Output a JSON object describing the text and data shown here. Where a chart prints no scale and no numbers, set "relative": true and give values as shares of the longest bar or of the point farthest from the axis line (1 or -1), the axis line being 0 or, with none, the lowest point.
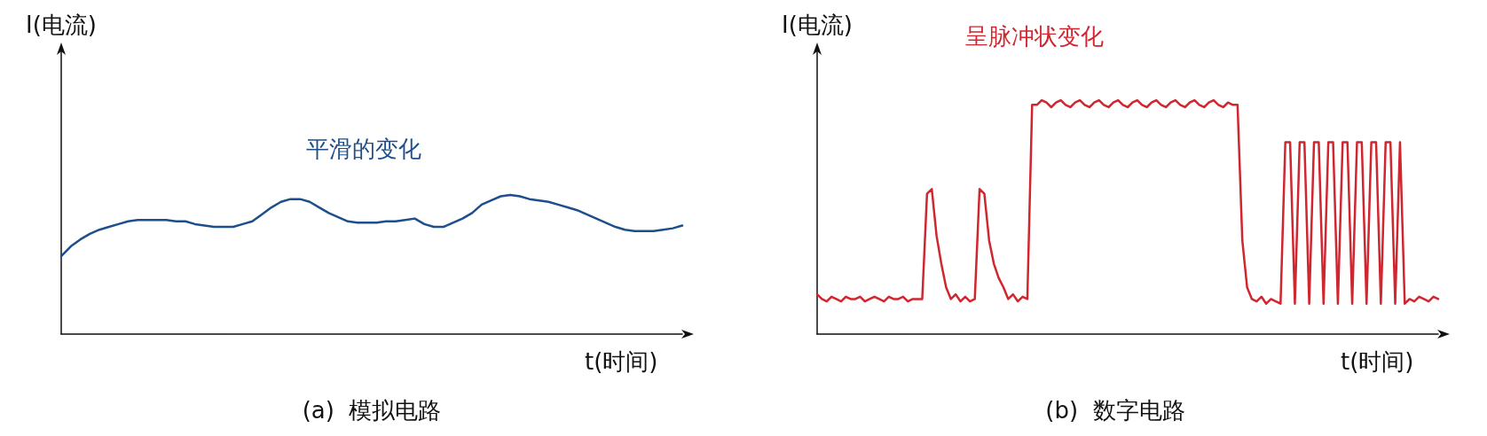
{
  "chart_data": [
    {
      "type": "line",
      "title": "(a)  模拟电路",
      "xlabel": "t(时间)",
      "ylabel": "I(电流)",
      "relative": true,
      "annotations": [
        "平滑的变化"
      ],
      "categories": [
        null,
        null,
        null,
        null,
        null,
        null,
        null,
        null,
        null,
        null,
        null,
        null,
        null,
        null,
        null,
        null,
        null,
        null,
        null,
        null,
        null,
        null,
        null,
        null,
        null,
        null,
        null,
        null,
        null,
        null,
        null,
        null,
        null,
        null,
        null,
        null,
        null,
        null,
        null,
        null,
        null,
        null,
        null,
        null,
        null,
        null,
        null,
        null,
        null,
        null,
        null,
        null,
        null,
        null,
        null,
        null,
        null,
        null,
        null,
        null,
        null,
        null,
        null,
        null,
        null,
        null
      ],
      "series": [
        {
          "color": "#1d4f8c",
          "values": [
            0.56,
            0.63,
            0.68,
            0.72,
            0.75,
            0.77,
            0.79,
            0.81,
            0.82,
            0.82,
            0.82,
            0.82,
            0.81,
            0.81,
            0.79,
            0.78,
            0.77,
            0.77,
            0.77,
            0.79,
            0.81,
            0.86,
            0.91,
            0.95,
            0.97,
            0.97,
            0.95,
            0.91,
            0.87,
            0.84,
            0.81,
            0.8,
            0.8,
            0.8,
            0.81,
            0.81,
            0.82,
            0.83,
            0.79,
            0.77,
            0.77,
            0.8,
            0.83,
            0.87,
            0.93,
            0.96,
            0.99,
            1.0,
            0.99,
            0.97,
            0.96,
            0.95,
            0.93,
            0.91,
            0.89,
            0.86,
            0.83,
            0.8,
            0.77,
            0.75,
            0.74,
            0.74,
            0.74,
            0.75,
            0.76,
            0.78
          ]
        }
      ]
    },
    {
      "type": "line",
      "title": "(b)  数字电路",
      "xlabel": "t(时间)",
      "ylabel": "I(电流)",
      "relative": true,
      "annotations": [
        "呈脉冲状变化"
      ],
      "categories": [
        null,
        null,
        null,
        null,
        null,
        null,
        null,
        null,
        null,
        null,
        null,
        null,
        null,
        null,
        null,
        null,
        null,
        null,
        null,
        null,
        null,
        null,
        null,
        null,
        null,
        null,
        null,
        null,
        null,
        null,
        null,
        null,
        null,
        null,
        null,
        null,
        null,
        null,
        null,
        null,
        null,
        null,
        null,
        null,
        null,
        null,
        null,
        null,
        null,
        null,
        null,
        null,
        null,
        null,
        null,
        null,
        null,
        null,
        null,
        null,
        null,
        null,
        null,
        null,
        null,
        null,
        null,
        null,
        null,
        null,
        null,
        null,
        null,
        null,
        null,
        null,
        null,
        null,
        null,
        null,
        null,
        null,
        null,
        null,
        null,
        null,
        null,
        null,
        null,
        null,
        null,
        null,
        null,
        null,
        null,
        null,
        null,
        null,
        null,
        null,
        null,
        null,
        null,
        null,
        null,
        null,
        null,
        null,
        null,
        null,
        null,
        null,
        null,
        null,
        null,
        null,
        null,
        null,
        null,
        null,
        null,
        null,
        null,
        null,
        null,
        null,
        null,
        null,
        null,
        null,
        null
      ],
      "series": [
        {
          "color": "#d0262f",
          "values": [
            0.17,
            0.15,
            0.14,
            0.16,
            0.15,
            0.14,
            0.16,
            0.15,
            0.15,
            0.16,
            0.14,
            0.15,
            0.16,
            0.15,
            0.14,
            0.16,
            0.15,
            0.15,
            0.16,
            0.14,
            0.15,
            0.15,
            0.15,
            0.6,
            0.62,
            0.42,
            0.3,
            0.2,
            0.15,
            0.17,
            0.14,
            0.16,
            0.14,
            0.15,
            0.62,
            0.6,
            0.4,
            0.3,
            0.24,
            0.2,
            0.15,
            0.17,
            0.14,
            0.16,
            0.15,
            0.98,
            0.98,
            1.0,
            0.99,
            0.97,
            0.99,
            1.0,
            0.98,
            0.97,
            0.99,
            1.0,
            0.98,
            0.97,
            0.99,
            1.0,
            0.98,
            0.97,
            0.99,
            1.0,
            0.98,
            0.97,
            0.99,
            1.0,
            0.98,
            0.97,
            0.99,
            1.0,
            0.98,
            0.97,
            0.99,
            1.0,
            0.98,
            0.97,
            0.99,
            1.0,
            0.98,
            0.97,
            0.99,
            1.0,
            0.98,
            0.97,
            0.99,
            0.98,
            0.98,
            0.4,
            0.2,
            0.15,
            0.14,
            0.16,
            0.13,
            0.15,
            0.14,
            0.13,
            0.82,
            0.82,
            0.13,
            0.82,
            0.82,
            0.13,
            0.82,
            0.82,
            0.13,
            0.82,
            0.82,
            0.13,
            0.82,
            0.82,
            0.13,
            0.82,
            0.82,
            0.13,
            0.82,
            0.82,
            0.13,
            0.82,
            0.82,
            0.13,
            0.82,
            0.13,
            0.15,
            0.14,
            0.16,
            0.15,
            0.14,
            0.16,
            0.15
          ]
        }
      ]
    }
  ]
}
